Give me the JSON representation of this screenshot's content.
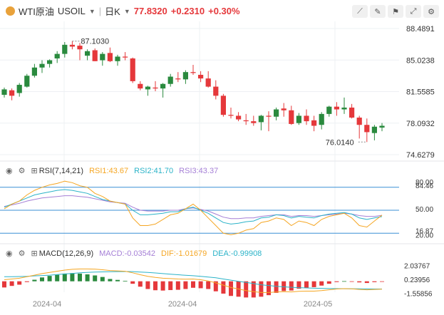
{
  "header": {
    "symbol_name": "WTI原油",
    "symbol_code": "USOIL",
    "timeframe": "日K",
    "price": "77.8320",
    "change": "+0.2310",
    "change_pct": "+0.30%",
    "icons": [
      "line-tool-icon",
      "draw-tool-icon",
      "mark-tool-icon",
      "fullscreen-icon",
      "settings-icon"
    ]
  },
  "colors": {
    "up": "#2a8a3e",
    "down": "#e5383b",
    "rsi1": "#f5a623",
    "rsi2": "#2bb3c8",
    "rsi3": "#a57fd6",
    "macd": "#a57fd6",
    "dif": "#f5a623",
    "dea": "#2bb3c8",
    "band": "#3a8fd6"
  },
  "price_axis": {
    "labels": [
      "88.4891",
      "85.0238",
      "81.5585",
      "78.0932",
      "74.6279"
    ]
  },
  "price_annotations": {
    "high": "87.1030",
    "low": "76.0140"
  },
  "date_axis": {
    "labels": [
      "2024-04",
      "2024-04",
      "2024-05"
    ]
  },
  "rsi": {
    "title": "RSI(7,14,21)",
    "rsi1": "RSI1:43.67",
    "rsi2": "RSI2:41.70",
    "rsi3": "RSI3:43.37",
    "axis_labels": [
      "80.00",
      "84.46",
      "50.00",
      "16.87",
      "20.00"
    ],
    "levels": [
      80,
      50,
      20
    ]
  },
  "macd": {
    "title": "MACD(12,26,9)",
    "macd": "MACD:-0.03542",
    "dif": "DIF:-1.01679",
    "dea": "DEA:-0.99908",
    "axis_labels": [
      "2.03767",
      "0.23956",
      "-1.55856"
    ]
  },
  "chart_data": {
    "type": "candlestick",
    "ohlc": [
      [
        81.2,
        82.0,
        80.9,
        81.8
      ],
      [
        81.7,
        81.9,
        80.6,
        81.1
      ],
      [
        81.4,
        82.5,
        81.0,
        82.3
      ],
      [
        82.1,
        83.5,
        82.0,
        83.3
      ],
      [
        83.3,
        84.6,
        83.1,
        84.2
      ],
      [
        84.2,
        85.0,
        83.6,
        84.6
      ],
      [
        84.6,
        85.1,
        84.2,
        85.0
      ],
      [
        85.2,
        86.0,
        84.7,
        85.7
      ],
      [
        85.7,
        87.0,
        85.3,
        86.7
      ],
      [
        86.7,
        87.103,
        86.2,
        86.5
      ],
      [
        86.6,
        86.9,
        85.0,
        86.2
      ],
      [
        85.5,
        86.2,
        85.0,
        86.0
      ],
      [
        86.1,
        86.3,
        84.9,
        84.9
      ],
      [
        85.0,
        85.9,
        84.4,
        85.7
      ],
      [
        85.8,
        86.4,
        84.8,
        84.9
      ],
      [
        84.9,
        85.6,
        84.4,
        85.4
      ],
      [
        85.4,
        85.9,
        85.0,
        85.3
      ],
      [
        85.2,
        85.3,
        82.5,
        82.7
      ],
      [
        82.4,
        82.7,
        81.7,
        81.9
      ],
      [
        81.8,
        82.2,
        81.1,
        82.1
      ],
      [
        82.0,
        82.7,
        81.6,
        81.9
      ],
      [
        81.9,
        82.5,
        80.9,
        82.4
      ],
      [
        82.4,
        83.5,
        82.1,
        83.2
      ],
      [
        83.0,
        83.7,
        82.6,
        82.9
      ],
      [
        82.9,
        83.9,
        82.4,
        83.7
      ],
      [
        83.7,
        84.5,
        83.4,
        83.6
      ],
      [
        83.4,
        83.8,
        82.6,
        83.0
      ],
      [
        83.0,
        83.8,
        82.0,
        82.1
      ],
      [
        82.1,
        82.8,
        80.7,
        81.1
      ],
      [
        81.1,
        81.3,
        78.8,
        79.0
      ],
      [
        79.0,
        79.8,
        78.6,
        78.9
      ],
      [
        78.9,
        79.3,
        78.3,
        78.5
      ],
      [
        78.4,
        79.1,
        77.9,
        78.3
      ],
      [
        78.3,
        78.9,
        77.8,
        78.1
      ],
      [
        78.2,
        79.0,
        77.3,
        78.9
      ],
      [
        78.9,
        79.4,
        77.2,
        78.8
      ],
      [
        78.8,
        79.8,
        78.4,
        79.6
      ],
      [
        79.7,
        80.3,
        78.8,
        79.5
      ],
      [
        79.5,
        80.0,
        77.9,
        78.0
      ],
      [
        78.1,
        79.2,
        77.9,
        78.9
      ],
      [
        78.9,
        79.6,
        77.9,
        78.3
      ],
      [
        78.4,
        78.9,
        77.2,
        77.8
      ],
      [
        77.9,
        79.3,
        77.4,
        79.1
      ],
      [
        79.1,
        80.0,
        78.8,
        79.9
      ],
      [
        79.9,
        80.4,
        78.9,
        79.6
      ],
      [
        79.6,
        80.9,
        79.1,
        79.8
      ],
      [
        79.8,
        80.2,
        78.6,
        78.7
      ],
      [
        78.7,
        78.9,
        76.4,
        77.9
      ],
      [
        77.9,
        78.6,
        76.014,
        77.1
      ],
      [
        77.0,
        77.9,
        76.2,
        77.7
      ],
      [
        77.6,
        78.1,
        77.2,
        77.8
      ]
    ],
    "y_range": [
      74.6279,
      88.4891
    ],
    "rsi1": [
      52,
      58,
      62,
      70,
      76,
      80,
      83,
      85,
      88,
      86,
      82,
      80,
      72,
      68,
      62,
      60,
      58,
      40,
      30,
      30,
      32,
      38,
      44,
      46,
      52,
      58,
      50,
      40,
      30,
      20,
      18,
      20,
      24,
      26,
      34,
      36,
      40,
      38,
      30,
      36,
      34,
      30,
      38,
      42,
      44,
      46,
      40,
      30,
      28,
      36,
      43.67
    ],
    "rsi2": [
      54,
      58,
      62,
      66,
      70,
      72,
      74,
      76,
      77,
      76,
      74,
      72,
      68,
      64,
      62,
      60,
      58,
      50,
      44,
      44,
      45,
      46,
      48,
      48,
      52,
      54,
      50,
      46,
      40,
      34,
      32,
      33,
      35,
      36,
      40,
      41,
      44,
      43,
      40,
      42,
      41,
      40,
      43,
      45,
      46,
      47,
      45,
      40,
      38,
      40,
      41.7
    ],
    "rsi3": [
      55,
      57,
      59,
      62,
      64,
      66,
      67,
      68,
      69,
      69,
      68,
      67,
      65,
      63,
      61,
      60,
      59,
      54,
      50,
      49,
      49,
      49,
      50,
      50,
      52,
      53,
      51,
      49,
      45,
      41,
      39,
      39,
      40,
      40,
      42,
      43,
      44,
      44,
      42,
      43,
      43,
      42,
      43,
      44,
      45,
      46,
      45,
      43,
      42,
      42,
      43.37
    ],
    "dif": [
      0.2,
      0.3,
      0.4,
      0.6,
      0.8,
      1.0,
      1.15,
      1.3,
      1.45,
      1.55,
      1.6,
      1.6,
      1.58,
      1.5,
      1.4,
      1.35,
      1.3,
      1.1,
      0.85,
      0.65,
      0.5,
      0.4,
      0.35,
      0.3,
      0.28,
      0.3,
      0.2,
      0.05,
      -0.2,
      -0.5,
      -0.8,
      -1.0,
      -1.2,
      -1.35,
      -1.45,
      -1.45,
      -1.4,
      -1.35,
      -1.38,
      -1.3,
      -1.28,
      -1.28,
      -1.2,
      -1.1,
      -1.0,
      -0.95,
      -0.98,
      -1.05,
      -1.1,
      -1.05,
      -1.01679
    ],
    "dea": [
      0.6,
      0.6,
      0.62,
      0.65,
      0.7,
      0.75,
      0.8,
      0.88,
      0.95,
      1.02,
      1.1,
      1.15,
      1.2,
      1.22,
      1.25,
      1.26,
      1.27,
      1.26,
      1.2,
      1.15,
      1.08,
      1.0,
      0.92,
      0.85,
      0.78,
      0.72,
      0.65,
      0.55,
      0.45,
      0.3,
      0.15,
      0.0,
      -0.15,
      -0.3,
      -0.45,
      -0.55,
      -0.65,
      -0.72,
      -0.78,
      -0.82,
      -0.86,
      -0.9,
      -0.92,
      -0.94,
      -0.95,
      -0.96,
      -0.97,
      -0.98,
      -0.99,
      -0.995,
      -0.99908
    ]
  }
}
